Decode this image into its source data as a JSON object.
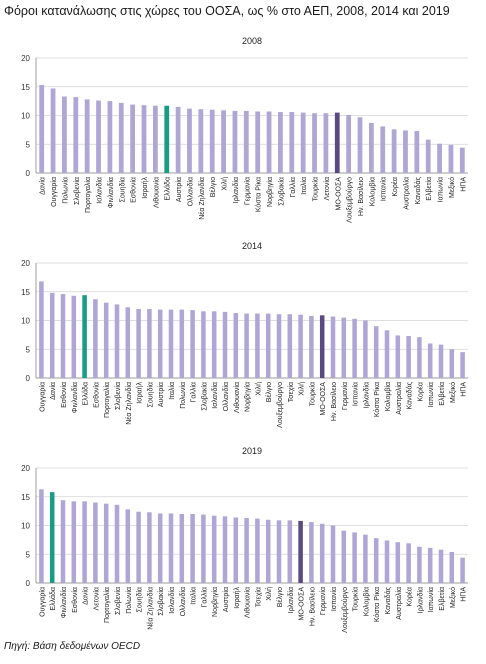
{
  "title": "Φόροι κατανάλωσης στις χώρες του ΟΟΣΑ, ως % στο ΑΕΠ, 2008, 2014 και 2019",
  "source": "Πηγή: Βάση δεδομένων OECD",
  "colors": {
    "default": "#b0a6d6",
    "greece": "#1a9b84",
    "oecd": "#5b4a82"
  },
  "chart_data": [
    {
      "type": "bar",
      "title": "2008",
      "ylim": [
        0,
        20
      ],
      "yticks": [
        0,
        5,
        10,
        15,
        20
      ],
      "grid": true,
      "categories": [
        "Δανία",
        "Ουγγαρία",
        "Πολωνία",
        "Σλοβενία",
        "Πορτογαλία",
        "Ισλανδία",
        "Φινλανδία",
        "Σουηδία",
        "Εσθονία",
        "Ισραήλ",
        "Λιθουανία",
        "Ελλάδα",
        "Αυστρία",
        "Ολλανδία",
        "Νέα Ζηλανδία",
        "Βέλγιο",
        "Χιλή",
        "Ιρλανδία",
        "Γερμανία",
        "Κόστα Ρίκα",
        "Νορβηγία",
        "Σλοβακία",
        "Γαλλία",
        "Ιταλία",
        "Τουρκία",
        "Λετονία",
        "ΜΟ-ΟΟΣΑ",
        "Λουξεμβούργο",
        "Ην. Βασίλειο",
        "Κολομβία",
        "Ισπανία",
        "Κορέα",
        "Αυστραλία",
        "Καναδάς",
        "Ελβετία",
        "Ιαπωνία",
        "Μεξικό",
        "ΗΠΑ"
      ],
      "values": [
        15.3,
        14.7,
        13.3,
        13.2,
        12.8,
        12.6,
        12.5,
        12.2,
        11.9,
        11.8,
        11.7,
        11.7,
        11.5,
        11.2,
        11.1,
        11.0,
        10.9,
        10.8,
        10.8,
        10.7,
        10.7,
        10.6,
        10.6,
        10.5,
        10.4,
        10.4,
        10.5,
        10.1,
        9.7,
        8.7,
        8.1,
        7.6,
        7.4,
        7.3,
        5.8,
        5.1,
        4.9,
        4.4
      ],
      "highlights": {
        "Ελλάδα": "greece",
        "ΜΟ-ΟΟΣΑ": "oecd"
      }
    },
    {
      "type": "bar",
      "title": "2014",
      "ylim": [
        0,
        20
      ],
      "yticks": [
        0,
        5,
        10,
        15,
        20
      ],
      "grid": true,
      "categories": [
        "Ουγγαρία",
        "Δανία",
        "Εσθονία",
        "Φινλανδία",
        "Ελλάδα",
        "Εσθονία",
        "Πορτογαλία",
        "Σλοβενία",
        "Νέα Ζηλανδία",
        "Ισραήλ",
        "Σουηδία",
        "Αυστρία",
        "Ιταλία",
        "Πολωνία",
        "Γαλλία",
        "Σλοβακία",
        "Ισλανδία",
        "Ολλανδία",
        "Λιθουανία",
        "Νορβηγία",
        "Χιλή",
        "Βέλγιο",
        "Λουξεμβούργο",
        "Τσεχία",
        "Χιλή",
        "Τουρκία",
        "ΜΟ-ΟΟΣΑ",
        "Ην. Βασίλειο",
        "Γερμανία",
        "Ισπανία",
        "Ιρλανδία",
        "Κόστα Ρίκα",
        "Κολομβία",
        "Αυστραλία",
        "Καναδάς",
        "Κορέα",
        "Ιαπωνία",
        "Ελβετία",
        "Μεξικό",
        "ΗΠΑ"
      ],
      "values": [
        16.8,
        14.8,
        14.6,
        14.3,
        14.4,
        13.7,
        13.1,
        12.8,
        12.3,
        12.0,
        12.0,
        11.9,
        11.9,
        11.9,
        11.8,
        11.6,
        11.6,
        11.5,
        11.3,
        11.2,
        11.2,
        11.2,
        11.1,
        11.1,
        11.0,
        10.8,
        10.9,
        10.7,
        10.5,
        10.3,
        10.0,
        9.0,
        8.3,
        7.4,
        7.3,
        7.1,
        6.0,
        5.8,
        5.0,
        4.5
      ],
      "highlights": {
        "Ελλάδα": "greece",
        "ΜΟ-ΟΟΣΑ": "oecd"
      }
    },
    {
      "type": "bar",
      "title": "2019",
      "ylim": [
        0,
        20
      ],
      "yticks": [
        0,
        5,
        10,
        15,
        20
      ],
      "grid": true,
      "categories": [
        "Ουγγαρία",
        "Ελλάδα",
        "Φινλανδία",
        "Εσθονία",
        "Δανία",
        "Λετονία",
        "Πορτογαλία",
        "Σλοβενία",
        "Πολωνία",
        "Σουηδία",
        "Νέα Ζηλανδία",
        "Σλοβακία",
        "Ισλανδία",
        "Ολλανδία",
        "Ιταλία",
        "Γαλλία",
        "Νορβηγία",
        "Αυστρία",
        "Ισραήλ",
        "Λιθουανία",
        "Τσεχία",
        "Χιλή",
        "Βέλγιο",
        "Ιρλανδία",
        "ΜΟ-ΟΟΣΑ",
        "Ην. Βασίλειο",
        "Γερμανία",
        "Ισπανία",
        "Λουξεμβούργο",
        "Τουρκία",
        "Κολομβία",
        "Κόστα Ρίκα",
        "Καναδάς",
        "Αυστραλία",
        "Κορέα",
        "Ιρλανδία",
        "Ιαπωνία",
        "Ελβετία",
        "Μεξικό",
        "ΗΠΑ"
      ],
      "values": [
        16.3,
        15.8,
        14.4,
        14.2,
        14.2,
        14.0,
        13.8,
        13.6,
        12.8,
        12.4,
        12.3,
        12.1,
        12.1,
        12.0,
        12.0,
        11.9,
        11.7,
        11.6,
        11.4,
        11.3,
        11.2,
        11.0,
        10.9,
        10.9,
        10.8,
        10.6,
        10.3,
        10.0,
        9.1,
        8.8,
        8.4,
        7.8,
        7.4,
        7.1,
        6.9,
        6.3,
        6.1,
        5.8,
        5.4,
        4.4
      ],
      "highlights": {
        "Ελλάδα": "greece",
        "ΜΟ-ΟΟΣΑ": "oecd"
      }
    }
  ]
}
